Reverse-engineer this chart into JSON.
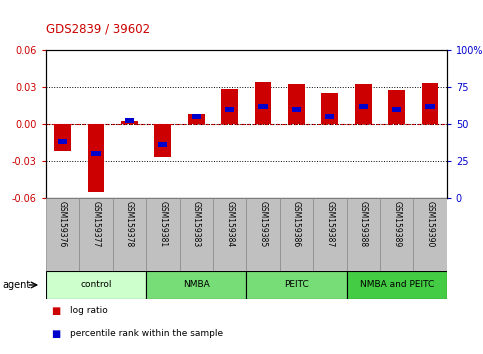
{
  "title": "GDS2839 / 39602",
  "samples": [
    "GSM159376",
    "GSM159377",
    "GSM159378",
    "GSM159381",
    "GSM159383",
    "GSM159384",
    "GSM159385",
    "GSM159386",
    "GSM159387",
    "GSM159388",
    "GSM159389",
    "GSM159390"
  ],
  "log_ratio": [
    -0.022,
    -0.055,
    0.002,
    -0.027,
    0.008,
    0.028,
    0.034,
    0.032,
    0.025,
    0.032,
    0.027,
    0.033
  ],
  "percentile_rank": [
    38,
    30,
    52,
    36,
    55,
    60,
    62,
    60,
    55,
    62,
    60,
    62
  ],
  "ylim_left": [
    -0.06,
    0.06
  ],
  "ylim_right": [
    0,
    100
  ],
  "yticks_left": [
    -0.06,
    -0.03,
    0.0,
    0.03,
    0.06
  ],
  "yticks_right": [
    0,
    25,
    50,
    75,
    100
  ],
  "groups": [
    {
      "label": "control",
      "start": 0,
      "end": 3
    },
    {
      "label": "NMBA",
      "start": 3,
      "end": 6
    },
    {
      "label": "PEITC",
      "start": 6,
      "end": 9
    },
    {
      "label": "NMBA and PEITC",
      "start": 9,
      "end": 12
    }
  ],
  "group_colors": [
    "#ccffcc",
    "#77dd77",
    "#77dd77",
    "#44cc44"
  ],
  "bar_color": "#cc0000",
  "pct_color": "#0000cc",
  "bar_width": 0.5,
  "zero_line_color": "#ff0000",
  "label_area_bg": "#c0c0c0",
  "left_axis_color": "#cc0000",
  "right_axis_color": "#0000cc",
  "agent_label": "agent",
  "legend_log_ratio": "log ratio",
  "legend_pct": "percentile rank within the sample"
}
